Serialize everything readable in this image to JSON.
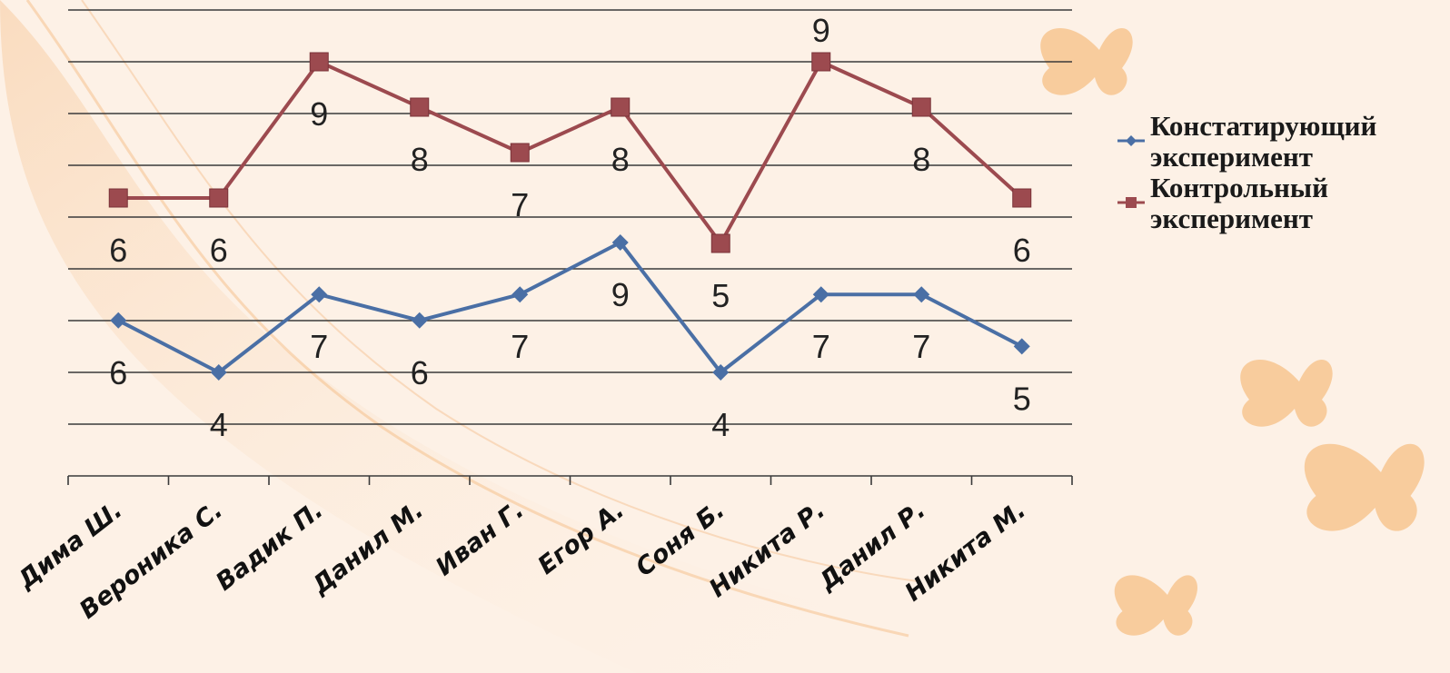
{
  "chart_data": {
    "type": "line",
    "categories": [
      "Дима Ш.",
      "Вероника С.",
      "Вадик П.",
      "Данил М.",
      "Иван Г.",
      "Егор А.",
      "Соня Б.",
      "Никита Р.",
      "Данил Р.",
      "Никита М."
    ],
    "series": [
      {
        "name": "Констатирующий эксперимент",
        "values": [
          6,
          4,
          7,
          6,
          7,
          9,
          4,
          7,
          7,
          5
        ],
        "color": "#4a6fa5",
        "marker": "diamond"
      },
      {
        "name": "Контрольный эксперимент",
        "values": [
          6,
          6,
          9,
          8,
          7,
          8,
          5,
          9,
          8,
          6
        ],
        "color": "#9c4a4f",
        "marker": "square"
      }
    ],
    "legend_position": "right",
    "grid": true,
    "title": "",
    "xlabel": "",
    "ylabel": ""
  },
  "legend": {
    "items": [
      {
        "label_line1": "Констатирующий",
        "label_line2": "эксперимент"
      },
      {
        "label_line1": "Контрольный",
        "label_line2": "эксперимент"
      }
    ]
  }
}
